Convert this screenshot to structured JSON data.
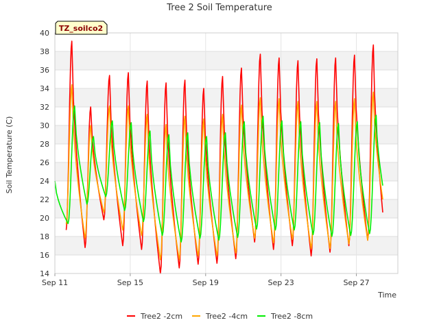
{
  "chart_data": {
    "type": "line",
    "title": "Tree 2 Soil Temperature",
    "xlabel": "Time",
    "ylabel": "Soil Temperature (C)",
    "badge": "TZ_soilco2",
    "ylim": [
      14,
      40
    ],
    "xlim": [
      "Sep 11",
      "Sep 29"
    ],
    "y_ticks": [
      "14",
      "16",
      "18",
      "20",
      "22",
      "24",
      "26",
      "28",
      "30",
      "32",
      "34",
      "36",
      "38",
      "40"
    ],
    "x_ticks": [
      "Sep 11",
      "Sep 15",
      "Sep 19",
      "Sep 23",
      "Sep 27"
    ],
    "grid": true,
    "legend_position": "bottom",
    "x_unit": "day of September",
    "series": [
      {
        "name": "Tree2 -2cm",
        "color": "#ff0000",
        "min_times": [
          11.6,
          12.6,
          13.6,
          14.6,
          15.6,
          16.6,
          17.6,
          18.6,
          19.6,
          20.6,
          21.6,
          22.6,
          23.6,
          24.6,
          25.6,
          26.6,
          27.6
        ],
        "min_values": [
          18.7,
          16.8,
          19.8,
          17.0,
          16.6,
          14.0,
          14.6,
          15.0,
          15.1,
          15.6,
          17.4,
          16.6,
          17.0,
          15.9,
          16.3,
          17.0,
          17.6
        ],
        "max_times": [
          11.9,
          12.9,
          13.9,
          14.9,
          15.9,
          16.9,
          17.9,
          18.9,
          19.9,
          20.9,
          21.9,
          22.9,
          23.9,
          24.9,
          25.9,
          26.9,
          27.9
        ],
        "max_values": [
          39.1,
          32.0,
          35.4,
          35.7,
          34.8,
          34.6,
          34.9,
          34.0,
          35.3,
          36.2,
          37.7,
          37.3,
          37.0,
          37.2,
          37.3,
          37.6,
          38.7
        ],
        "end": [
          28.4,
          20.6
        ]
      },
      {
        "name": "Tree2 -4cm",
        "color": "#ffa500",
        "min_times": [
          11.6,
          12.6,
          13.6,
          14.6,
          15.6,
          16.6,
          17.6,
          18.6,
          19.6,
          20.6,
          21.6,
          22.6,
          23.6,
          24.6,
          25.6,
          26.6,
          27.6
        ],
        "min_values": [
          19.3,
          17.8,
          20.6,
          18.7,
          18.1,
          15.5,
          15.5,
          15.9,
          15.9,
          16.2,
          17.8,
          17.3,
          17.7,
          16.7,
          16.7,
          17.2,
          17.6
        ],
        "max_times": [
          11.9,
          12.9,
          13.9,
          14.9,
          15.9,
          16.9,
          17.9,
          18.9,
          19.9,
          20.9,
          21.9,
          22.9,
          23.9,
          24.9,
          25.9,
          26.9,
          27.9
        ],
        "max_values": [
          34.4,
          30.0,
          32.1,
          32.1,
          31.2,
          30.1,
          31.0,
          30.7,
          31.2,
          32.2,
          33.0,
          32.9,
          32.6,
          32.6,
          32.6,
          32.9,
          33.6
        ],
        "end": [
          28.4,
          22.0
        ]
      },
      {
        "name": "Tree2 -8cm",
        "color": "#00ee00",
        "min_times": [
          11.7,
          12.7,
          13.7,
          14.7,
          15.7,
          16.7,
          17.7,
          18.7,
          19.7,
          20.7,
          21.7,
          22.7,
          23.7,
          24.7,
          25.7,
          26.7,
          27.7
        ],
        "min_values": [
          19.4,
          21.5,
          22.3,
          20.8,
          19.6,
          18.1,
          17.4,
          17.8,
          17.6,
          17.9,
          18.8,
          18.7,
          18.7,
          18.2,
          18.0,
          18.1,
          18.3
        ],
        "max_times": [
          12.05,
          13.05,
          14.05,
          15.05,
          16.05,
          17.05,
          18.05,
          19.05,
          20.05,
          21.05,
          22.05,
          23.05,
          24.05,
          25.05,
          26.05,
          27.05,
          28.05
        ],
        "max_values": [
          32.1,
          28.8,
          30.5,
          30.3,
          29.4,
          29.0,
          29.2,
          28.8,
          29.2,
          30.4,
          31.0,
          30.5,
          30.4,
          30.3,
          30.2,
          30.4,
          31.1
        ],
        "start": [
          11.0,
          24.0
        ],
        "end": [
          28.4,
          23.5
        ]
      }
    ]
  }
}
